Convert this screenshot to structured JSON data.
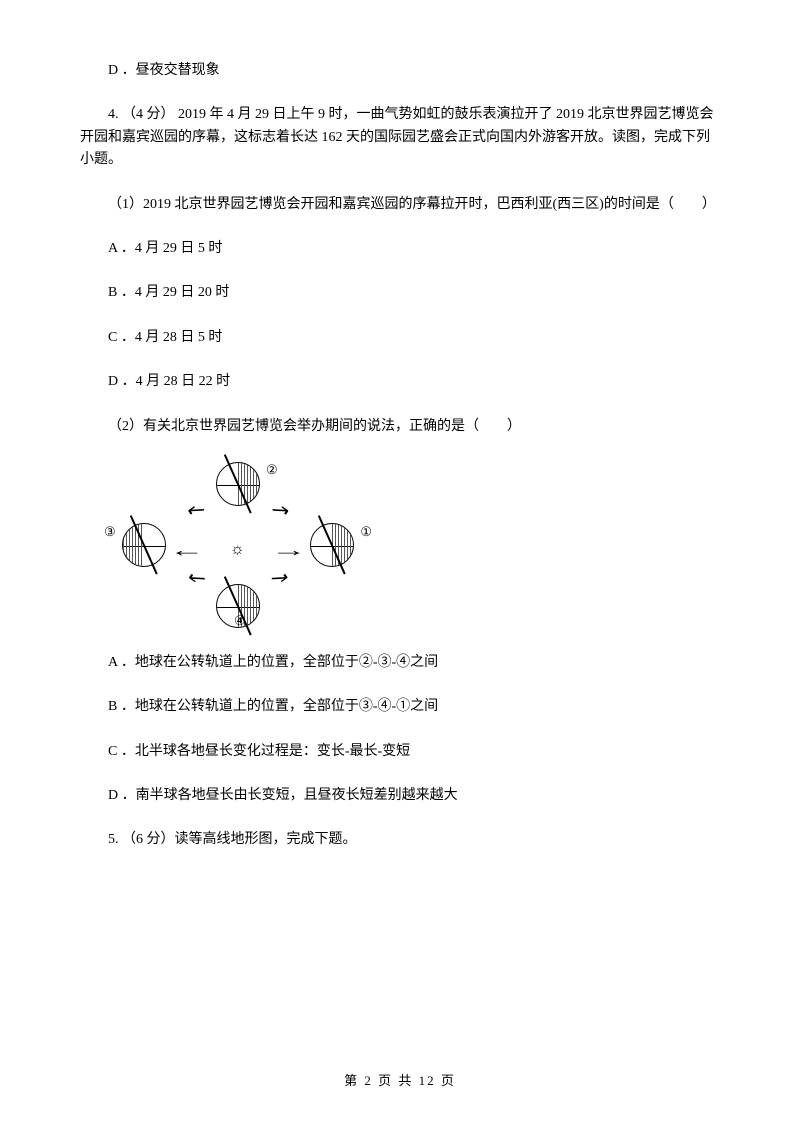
{
  "items": {
    "d_prev": "D ．昼夜交替现象",
    "q4_stem": "4.  （4 分）  2019 年 4 月 29 日上午 9 时，一曲气势如虹的鼓乐表演拉开了 2019 北京世界园艺博览会开园和嘉宾巡园的序幕，这标志着长达 162 天的国际园艺盛会正式向国内外游客开放。读图，完成下列小题。",
    "q4_1": "（1）2019 北京世界园艺博览会开园和嘉宾巡园的序幕拉开时，巴西利亚(西三区)的时间是（　　）",
    "q4_1_a": "A ．4 月 29 日 5 时",
    "q4_1_b": "B ．4 月 29 日 20 时",
    "q4_1_c": "C ．4 月 28 日 5 时",
    "q4_1_d": "D ．4 月 28 日 22 时",
    "q4_2": "（2）有关北京世界园艺博览会举办期间的说法，正确的是（　　）",
    "q4_2_a": "A ．地球在公转轨道上的位置，全部位于②-③-④之间",
    "q4_2_b": "B ．地球在公转轨道上的位置，全部位于③-④-①之间",
    "q4_2_c": "C ．北半球各地昼长变化过程是：变长-最长-变短",
    "q4_2_d": "D ．南半球各地昼长由长变短，且昼夜长短差别越来越大",
    "q5_stem": "5.  （6 分）读等高线地形图，完成下题。"
  },
  "diagram": {
    "labels": {
      "l1": "①",
      "l2": "②",
      "l3": "③",
      "l4": "④"
    },
    "sun": "☼",
    "arrows": {
      "left": "←",
      "right": "→",
      "tl": "↖",
      "tr": "↗",
      "bl": "↙",
      "br": "↘"
    }
  },
  "footer": {
    "text": "第 2 页 共 12 页"
  }
}
